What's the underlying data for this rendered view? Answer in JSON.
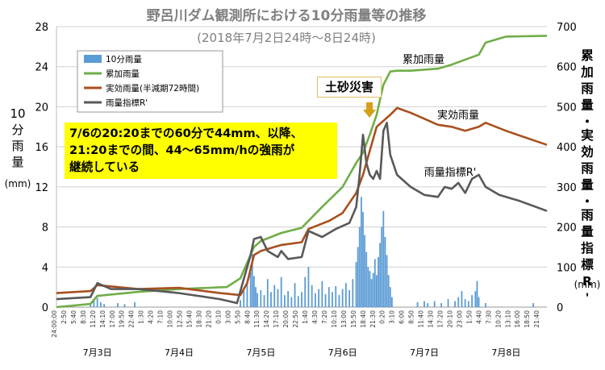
{
  "chart_data": {
    "type": "bar+line",
    "title": "野呂川ダム観測所における10分雨量等の推移",
    "subtitle": "(2018年7月2日24時～8日24時)",
    "y_left_label": "10分雨量",
    "y_left_unit": "(mm)",
    "y_right_label": "累加雨量・実効雨量・雨量指標R'",
    "y_right_unit": "(mm)",
    "y_left_range": [
      0,
      28
    ],
    "y_left_ticks": [
      "0",
      "4",
      "8",
      "12",
      "16",
      "20",
      "24",
      "28"
    ],
    "y_right_range": [
      0,
      700
    ],
    "y_right_ticks": [
      "0",
      "100",
      "200",
      "300",
      "400",
      "500",
      "600",
      "700"
    ],
    "x_range_hours": [
      0,
      144
    ],
    "x_tick_labels": [
      "24:00:00",
      "2:50",
      "5:40",
      "8:30",
      "11:20",
      "14:10",
      "17:00",
      "19:50",
      "22:40",
      "1:30",
      "4:20",
      "7:10",
      "10:00",
      "12:50",
      "15:40",
      "18:30",
      "21:20",
      "0:10",
      "3:00",
      "5:50",
      "8:40",
      "11:30",
      "14:20",
      "17:10",
      "20:00",
      "22:50",
      "1:40",
      "4:30",
      "7:20",
      "10:10",
      "13:00",
      "15:50",
      "18:40",
      "21:30",
      "0:20",
      "3:10",
      "6:00",
      "8:50",
      "11:40",
      "14:30",
      "17:20",
      "20:10",
      "23:00",
      "1:50",
      "4:40",
      "7:30",
      "10:20",
      "13:10",
      "16:00",
      "18:50",
      "21:40"
    ],
    "date_labels": [
      "7月3日",
      "7月4日",
      "7月5日",
      "7月6日",
      "7月7日",
      "7月8日"
    ],
    "legend": [
      "10分雨量",
      "累加雨量",
      "実効雨量(半減期72時間)",
      "雨量指標R'"
    ],
    "colors": {
      "rain10": "#5b9bd5",
      "cumulative": "#70ad47",
      "effective": "#a9501e",
      "index": "#595959",
      "callout": "#ffff00",
      "arrow": "#d4a017"
    },
    "series_labels": {
      "cumulative": "累加雨量",
      "effective": "実効雨量",
      "index": "雨量指標R'"
    },
    "annotation_disaster": "土砂災害",
    "annotation_text": [
      "7/6の20:20までの60分で44mm、以降、",
      "21:20までの間、44～65mm/hの強雨が",
      "継続している"
    ],
    "series": [
      {
        "name": "累加雨量",
        "axis": "right",
        "x": [
          0,
          10,
          12,
          24,
          36,
          50,
          54,
          58,
          60,
          66,
          72,
          78,
          84,
          88,
          90,
          92,
          94,
          96,
          98,
          100,
          104,
          112,
          116,
          124,
          126,
          132,
          144
        ],
        "y": [
          0,
          8,
          28,
          38,
          45,
          50,
          72,
          150,
          165,
          185,
          198,
          250,
          300,
          360,
          385,
          430,
          480,
          555,
          588,
          590,
          590,
          595,
          605,
          630,
          660,
          675,
          677
        ]
      },
      {
        "name": "実効雨量(半減期72時間)",
        "axis": "right",
        "x": [
          0,
          10,
          12,
          24,
          36,
          48,
          54,
          56,
          58,
          60,
          66,
          72,
          74,
          80,
          84,
          88,
          90,
          92,
          94,
          98,
          100,
          104,
          108,
          112,
          116,
          120,
          124,
          126,
          132,
          144
        ],
        "y": [
          35,
          40,
          55,
          45,
          48,
          35,
          30,
          60,
          130,
          140,
          155,
          162,
          195,
          215,
          235,
          285,
          330,
          390,
          450,
          480,
          497,
          485,
          470,
          455,
          450,
          440,
          450,
          460,
          440,
          405
        ]
      },
      {
        "name": "雨量指標R'",
        "axis": "right",
        "x": [
          0,
          10,
          12,
          16,
          24,
          36,
          48,
          53,
          55,
          57,
          58,
          60,
          62,
          65,
          66,
          68,
          72,
          74,
          78,
          82,
          86,
          88,
          89,
          90,
          91,
          92,
          93,
          94,
          95,
          96,
          97,
          98,
          100,
          104,
          108,
          112,
          114,
          116,
          118,
          120,
          122,
          124,
          126,
          130,
          136,
          144
        ],
        "y": [
          20,
          25,
          60,
          45,
          45,
          35,
          20,
          10,
          70,
          130,
          170,
          175,
          140,
          125,
          140,
          120,
          125,
          190,
          175,
          195,
          210,
          250,
          330,
          430,
          360,
          330,
          320,
          340,
          320,
          440,
          460,
          380,
          330,
          300,
          280,
          275,
          300,
          295,
          310,
          285,
          320,
          330,
          300,
          280,
          265,
          240
        ]
      }
    ],
    "bars_10min": [
      [
        10,
        0.4
      ],
      [
        11,
        0.6
      ],
      [
        12,
        0.9
      ],
      [
        13,
        0.5
      ],
      [
        14,
        0.3
      ],
      [
        18,
        0.4
      ],
      [
        20,
        0.3
      ],
      [
        23,
        0.5
      ],
      [
        54,
        0.7
      ],
      [
        55,
        1.8
      ],
      [
        56,
        2.5
      ],
      [
        57,
        4.2
      ],
      [
        57.5,
        5.3
      ],
      [
        58,
        3.1
      ],
      [
        58.5,
        2.0
      ],
      [
        59,
        1.4
      ],
      [
        60,
        1.7
      ],
      [
        61,
        1.2
      ],
      [
        62,
        2.8
      ],
      [
        63,
        1.5
      ],
      [
        64,
        2.2
      ],
      [
        65,
        1.8
      ],
      [
        66,
        3.0
      ],
      [
        67,
        1.2
      ],
      [
        68,
        1.6
      ],
      [
        69,
        1.0
      ],
      [
        70,
        2.4
      ],
      [
        71,
        1.1
      ],
      [
        72,
        1.5
      ],
      [
        73,
        3.0
      ],
      [
        74,
        4.0
      ],
      [
        75,
        2.2
      ],
      [
        76,
        1.4
      ],
      [
        77,
        1.8
      ],
      [
        78,
        2.6
      ],
      [
        79,
        1.3
      ],
      [
        80,
        2.0
      ],
      [
        81,
        1.5
      ],
      [
        82,
        2.1
      ],
      [
        83,
        1.2
      ],
      [
        84,
        1.8
      ],
      [
        85,
        2.4
      ],
      [
        86,
        1.7
      ],
      [
        87,
        2.8
      ],
      [
        88,
        4.5
      ],
      [
        88.5,
        6.0
      ],
      [
        89,
        8.0
      ],
      [
        89.5,
        11.0
      ],
      [
        90,
        9.5
      ],
      [
        90.5,
        7.2
      ],
      [
        91,
        5.5
      ],
      [
        91.5,
        4.0
      ],
      [
        92,
        3.6
      ],
      [
        92.5,
        2.8
      ],
      [
        93,
        3.4
      ],
      [
        93.5,
        4.8
      ],
      [
        94,
        3.2
      ],
      [
        94.5,
        5.0
      ],
      [
        95,
        6.4
      ],
      [
        95.5,
        8.0
      ],
      [
        96,
        9.6
      ],
      [
        96.5,
        7.0
      ],
      [
        97,
        5.2
      ],
      [
        97.5,
        3.2
      ],
      [
        98,
        2.0
      ],
      [
        98.5,
        1.0
      ],
      [
        106,
        0.5
      ],
      [
        108,
        0.6
      ],
      [
        109,
        0.4
      ],
      [
        111,
        0.6
      ],
      [
        113,
        0.4
      ],
      [
        115,
        0.8
      ],
      [
        117,
        0.6
      ],
      [
        118,
        1.0
      ],
      [
        119,
        1.6
      ],
      [
        120,
        0.8
      ],
      [
        121,
        0.6
      ],
      [
        122,
        1.2
      ],
      [
        123,
        1.6
      ],
      [
        123.5,
        2.6
      ],
      [
        124,
        1.0
      ],
      [
        126,
        0.4
      ],
      [
        140,
        0.4
      ]
    ]
  }
}
